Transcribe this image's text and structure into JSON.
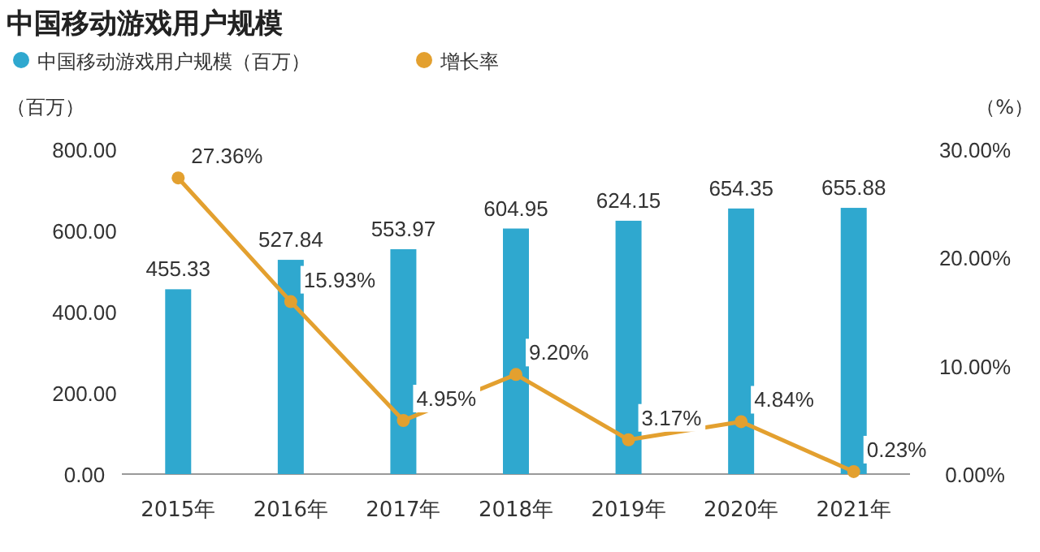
{
  "chart_data": {
    "type": "bar",
    "title": "中国移动游戏用户规模",
    "ylabel": "（百万）",
    "y2label": "（%）",
    "categories": [
      "2015年",
      "2016年",
      "2017年",
      "2018年",
      "2019年",
      "2020年",
      "2021年"
    ],
    "series": [
      {
        "name": "中国移动游戏用户规模（百万）",
        "color": "#2fa8cf",
        "values": [
          455.33,
          527.84,
          553.97,
          604.95,
          624.15,
          654.35,
          655.88
        ]
      },
      {
        "name": "增长率",
        "type": "line",
        "axis": "y2",
        "color": "#e3a02f",
        "marker": "circle",
        "values": [
          27.36,
          15.93,
          4.95,
          9.2,
          3.17,
          4.84,
          0.23
        ],
        "value_labels": [
          "27.36%",
          "15.93%",
          "4.95%",
          "9.20%",
          "3.17%",
          "4.84%",
          "0.23%"
        ]
      }
    ],
    "data_labels": true,
    "legend": "top left",
    "ylim": [
      0,
      800
    ],
    "yticks": [
      {
        "value": 0,
        "label": "0.00"
      },
      {
        "value": 200,
        "label": "200.00"
      },
      {
        "value": 400,
        "label": "400.00"
      },
      {
        "value": 600,
        "label": "600.00"
      },
      {
        "value": 800,
        "label": "800.00"
      }
    ],
    "y2lim": [
      0,
      30
    ],
    "y2ticks": [
      {
        "value": 0,
        "label": "0.00%"
      },
      {
        "value": 10,
        "label": "10.00%"
      },
      {
        "value": 20,
        "label": "20.00%"
      },
      {
        "value": 30,
        "label": "30.00%"
      }
    ]
  }
}
